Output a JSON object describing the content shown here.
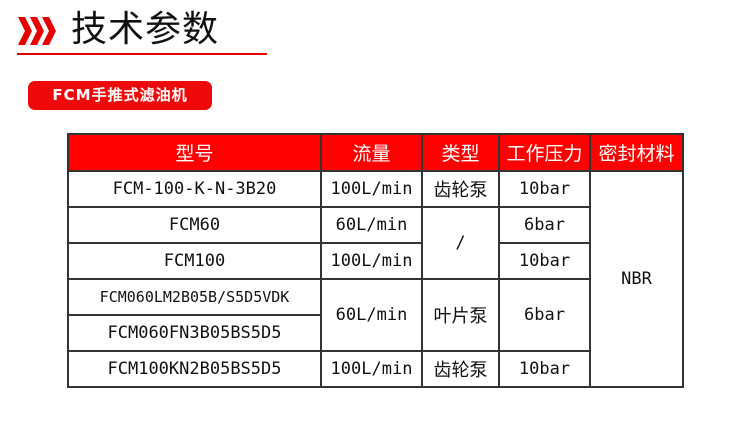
{
  "header": {
    "title": "技术参数",
    "icon": "triple-chevron-right-icon",
    "accent": "#e60000"
  },
  "badge": {
    "label": "FCM手推式滤油机"
  },
  "table": {
    "columns": [
      "型号",
      "流量",
      "类型",
      "工作压力",
      "密封材料"
    ],
    "rows": [
      {
        "model": "FCM-100-K-N-3B20",
        "flow": "100L/min",
        "type": "齿轮泵",
        "pressure": "10bar"
      },
      {
        "model": "FCM60",
        "flow": "60L/min",
        "type": "/",
        "pressure": "6bar"
      },
      {
        "model": "FCM100",
        "flow": "100L/min",
        "pressure": "10bar"
      },
      {
        "model": "FCM060LM2B05B/S5D5VDK",
        "flow": "60L/min",
        "type": "叶片泵",
        "pressure": "6bar"
      },
      {
        "model": "FCM060FN3B05BS5D5"
      },
      {
        "model": "FCM100KN2B05BS5D5",
        "flow": "100L/min",
        "type": "齿轮泵",
        "pressure": "10bar"
      }
    ],
    "seal": "NBR"
  }
}
